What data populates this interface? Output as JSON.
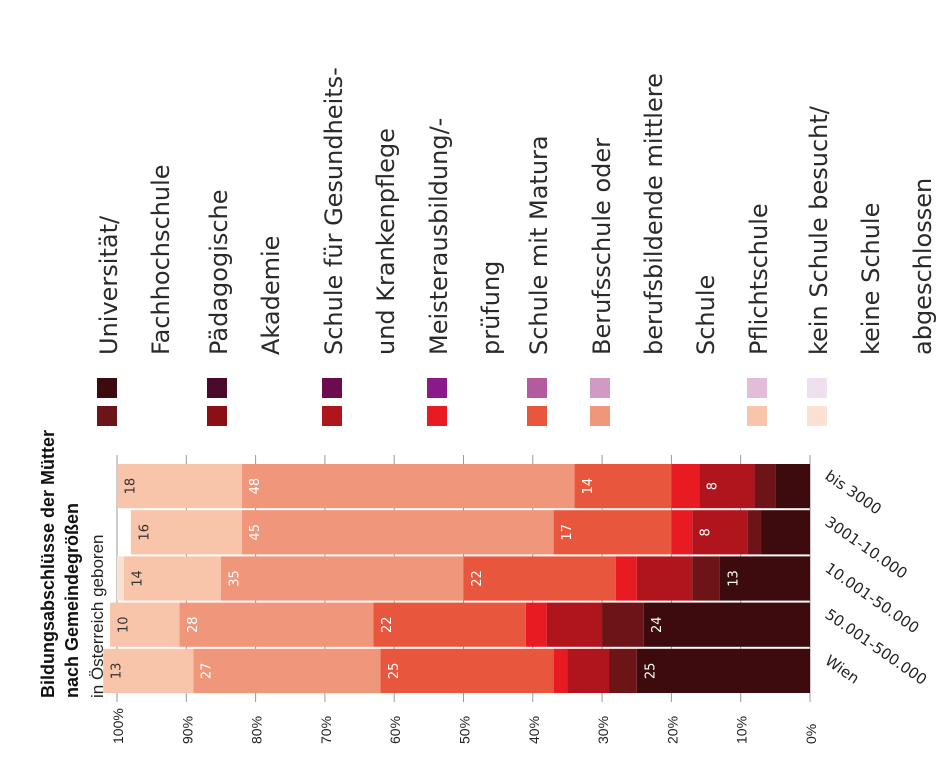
{
  "chart_data": {
    "type": "bar",
    "stacked": true,
    "orientation": "horizontal",
    "rotated_page": true,
    "title": "Bildungsabschlüsse der Mütter",
    "title_line2": "nach Gemeindegrößen",
    "subtitle": "in Österreich geboren",
    "categories": [
      "bis 3000",
      "3001-10.000",
      "10.001-50.000",
      "50.001-500.000",
      "Wien"
    ],
    "value_ticks": [
      "100%",
      "90%",
      "80%",
      "70%",
      "60%",
      "50%",
      "40%",
      "30%",
      "20%",
      "10%",
      "0%"
    ],
    "xlim": [
      0,
      100
    ],
    "legend_placement": "top",
    "series": [
      {
        "name": "Universität/ Fachhochschule",
        "legend_lines": [
          "Universität/",
          "Fachhochschule"
        ],
        "color": "#3d0a0e",
        "values": [
          5,
          7,
          13,
          24,
          25
        ],
        "labels": [
          "",
          "",
          "13",
          "24",
          "25"
        ]
      },
      {
        "name": "Pädagogische Akademie",
        "legend_lines": [
          "Pädagogische",
          "Akademie"
        ],
        "color": "#6d1418",
        "values": [
          3,
          2,
          4,
          6,
          4
        ],
        "labels": [
          "",
          "",
          "",
          "",
          ""
        ]
      },
      {
        "name": "Schule für Gesundheits- und Krankenpflege",
        "legend_lines": [
          "Schule für Gesundheits-",
          "und Krankenpflege"
        ],
        "color": "#b0141c",
        "values": [
          8,
          8,
          8,
          8,
          6
        ],
        "labels": [
          "8",
          "8",
          "",
          "",
          ""
        ]
      },
      {
        "name": "Meisterausbildung/-prüfung",
        "legend_lines": [
          "Meisterausbildung/-",
          "prüfung"
        ],
        "color": "#e81a22",
        "values": [
          4,
          3,
          3,
          3,
          2
        ],
        "labels": [
          "",
          "",
          "",
          "",
          ""
        ]
      },
      {
        "name": "Schule mit Matura",
        "legend_lines": [
          "Schule mit Matura"
        ],
        "color": "#e8563e",
        "values": [
          14,
          17,
          22,
          22,
          25
        ],
        "labels": [
          "14",
          "17",
          "22",
          "22",
          "25"
        ]
      },
      {
        "name": "Berufsschule oder berufsbildende mittlere Schule",
        "legend_lines": [
          "Berufsschule oder",
          "berufsbildende mittlere",
          "Schule"
        ],
        "color": "#f0967b",
        "values": [
          48,
          45,
          35,
          28,
          27
        ],
        "labels": [
          "48",
          "45",
          "35",
          "28",
          "27"
        ]
      },
      {
        "name": "Pflichtschule",
        "legend_lines": [
          "Pflichtschule"
        ],
        "color": "#f8c4aa",
        "values": [
          18,
          16,
          14,
          10,
          13
        ],
        "labels": [
          "18",
          "16",
          "14",
          "10",
          "13"
        ]
      },
      {
        "name": "kein Schule besucht/ keine Schule abgeschlossen",
        "legend_lines": [
          "kein Schule besucht/",
          "keine Schule",
          "abgeschlossen"
        ],
        "color": "#fbe0d4",
        "values": [
          0,
          0,
          1,
          0,
          0
        ],
        "labels": [
          "",
          "",
          "",
          "",
          ""
        ]
      }
    ],
    "legend_swatch_pairs": [
      [
        "#3d0a0e",
        "#6d1418"
      ],
      [
        "#4a0a2a",
        "#8a1016"
      ],
      [
        "#6a0c4e",
        "#b0141c"
      ],
      [
        "#8a1a8a",
        "#e81a22"
      ],
      [
        "#b45a9e",
        "#e8563e"
      ],
      [
        "#d29ac2",
        "#f0967b"
      ],
      [
        "#e2bcd8",
        "#f8c4aa"
      ],
      [
        "#eee0ee",
        "#fbe0d4"
      ]
    ]
  }
}
